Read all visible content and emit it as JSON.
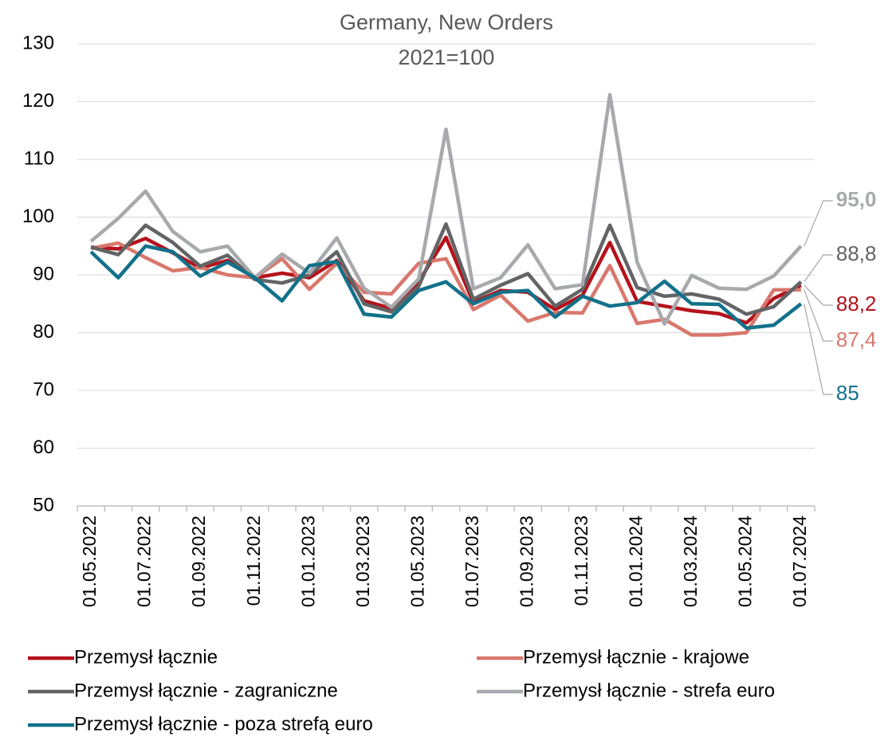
{
  "chart_data": {
    "type": "line",
    "title": "Germany, New Orders",
    "subtitle": "2021=100",
    "categories": [
      "01.05.2022",
      null,
      "01.07.2022",
      null,
      "01.09.2022",
      null,
      "01.11.2022",
      null,
      "01.01.2023",
      null,
      "01.03.2023",
      null,
      "01.05.2023",
      null,
      "01.07.2023",
      null,
      "01.09.2023",
      null,
      "01.11.2023",
      null,
      "01.01.2024",
      null,
      "01.03.2024",
      null,
      "01.05.2024",
      null,
      "01.07.2024"
    ],
    "ylim": [
      50,
      130
    ],
    "yticks": [
      50,
      60,
      70,
      80,
      90,
      100,
      110,
      120,
      130
    ],
    "grid": true,
    "series": [
      {
        "name": "Przemysł łącznie",
        "color": "#b5121b",
        "values": [
          94.8,
          94.5,
          96.3,
          93.8,
          91.2,
          92.5,
          89.5,
          90.3,
          89.5,
          92.5,
          85.5,
          84.2,
          88.8,
          96.5,
          85.2,
          87.3,
          87.0,
          84.0,
          86.5,
          95.6,
          85.4,
          84.6,
          83.8,
          83.3,
          81.7,
          85.9,
          88.2
        ],
        "value_labels": [
          null,
          null,
          null,
          null,
          null,
          null,
          null,
          null,
          null,
          null,
          null,
          null,
          null,
          null,
          null,
          null,
          null,
          null,
          null,
          null,
          null,
          null,
          null,
          null,
          null,
          null,
          "88,2"
        ]
      },
      {
        "name": "Przemysł łącznie - krajowe",
        "color": "#d9776c",
        "values": [
          94.6,
          95.5,
          93.0,
          90.7,
          91.3,
          90.0,
          89.5,
          92.8,
          87.5,
          92.0,
          87.0,
          86.7,
          92.0,
          92.8,
          84.0,
          86.5,
          82.0,
          83.5,
          83.4,
          91.6,
          81.6,
          82.3,
          79.6,
          79.6,
          80.0,
          87.4,
          87.4
        ],
        "value_labels": [
          null,
          null,
          null,
          null,
          null,
          null,
          null,
          null,
          null,
          null,
          null,
          null,
          null,
          null,
          null,
          null,
          null,
          null,
          null,
          null,
          null,
          null,
          null,
          null,
          null,
          null,
          "87,4"
        ]
      },
      {
        "name": "Przemysł łącznie - zagraniczne",
        "color": "#636466",
        "values": [
          94.8,
          93.5,
          98.6,
          95.6,
          91.5,
          93.4,
          89.2,
          88.6,
          90.0,
          94.0,
          85.0,
          83.6,
          88.0,
          98.8,
          85.8,
          88.2,
          90.2,
          84.6,
          87.5,
          98.6,
          87.8,
          86.3,
          86.7,
          85.8,
          83.2,
          84.5,
          88.8
        ],
        "value_labels": [
          null,
          null,
          null,
          null,
          null,
          null,
          null,
          null,
          null,
          null,
          null,
          null,
          null,
          null,
          null,
          null,
          null,
          null,
          null,
          null,
          null,
          null,
          null,
          null,
          null,
          null,
          "88,8"
        ]
      },
      {
        "name": "Przemysł łącznie - strefa euro",
        "color": "#a7a9ac",
        "values": [
          95.8,
          99.8,
          104.5,
          97.5,
          94.0,
          95.0,
          89.5,
          93.6,
          90.3,
          96.4,
          87.7,
          84.4,
          89.3,
          115.2,
          87.6,
          89.5,
          95.2,
          87.6,
          88.3,
          121.2,
          92.2,
          81.5,
          89.9,
          87.7,
          87.5,
          89.8,
          95.0
        ],
        "value_labels": [
          null,
          null,
          null,
          null,
          null,
          null,
          null,
          null,
          null,
          null,
          null,
          null,
          null,
          null,
          null,
          null,
          null,
          null,
          null,
          null,
          null,
          null,
          null,
          null,
          null,
          null,
          "95,0"
        ]
      },
      {
        "name": "Przemysł łącznie - poza strefą euro",
        "color": "#12718a",
        "values": [
          94.0,
          89.5,
          95.0,
          94.0,
          89.8,
          92.2,
          89.5,
          85.5,
          91.6,
          92.3,
          83.2,
          82.7,
          87.3,
          88.8,
          85.0,
          87.0,
          87.3,
          82.7,
          86.3,
          84.6,
          85.2,
          88.9,
          85.0,
          84.9,
          80.8,
          81.3,
          85.0
        ],
        "value_labels": [
          null,
          null,
          null,
          null,
          null,
          null,
          null,
          null,
          null,
          null,
          null,
          null,
          null,
          null,
          null,
          null,
          null,
          null,
          null,
          null,
          null,
          null,
          null,
          null,
          null,
          null,
          "85"
        ]
      }
    ]
  }
}
